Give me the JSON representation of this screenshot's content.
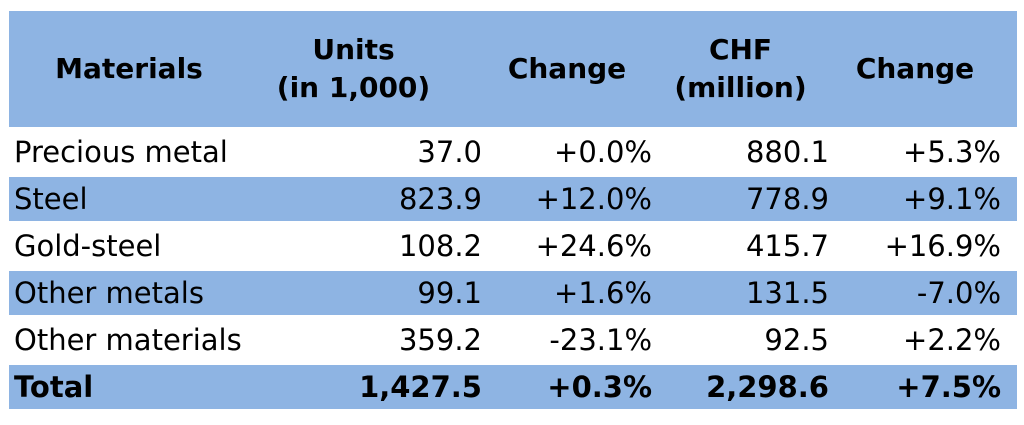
{
  "chart_data": {
    "type": "table",
    "columns": [
      {
        "key": "material",
        "label": [
          "Materials"
        ]
      },
      {
        "key": "units",
        "label": [
          "Units",
          "(in 1,000)"
        ]
      },
      {
        "key": "units_change",
        "label": [
          "Change"
        ]
      },
      {
        "key": "chf",
        "label": [
          "CHF",
          "(million)"
        ]
      },
      {
        "key": "chf_change",
        "label": [
          "Change"
        ]
      }
    ],
    "rows": [
      {
        "material": "Precious metal",
        "units": "37.0",
        "units_change": "+0.0%",
        "chf": "880.1",
        "chf_change": "+5.3%"
      },
      {
        "material": "Steel",
        "units": "823.9",
        "units_change": "+12.0%",
        "chf": "778.9",
        "chf_change": "+9.1%"
      },
      {
        "material": "Gold-steel",
        "units": "108.2",
        "units_change": "+24.6%",
        "chf": "415.7",
        "chf_change": "+16.9%"
      },
      {
        "material": "Other metals",
        "units": "99.1",
        "units_change": "+1.6%",
        "chf": "131.5",
        "chf_change": "-7.0%"
      },
      {
        "material": "Other materials",
        "units": "359.2",
        "units_change": "-23.1%",
        "chf": "92.5",
        "chf_change": "+2.2%"
      }
    ],
    "total": {
      "material": "Total",
      "units": "1,427.5",
      "units_change": "+0.3%",
      "chf": "2,298.6",
      "chf_change": "+7.5%"
    },
    "header_color": "#8eb4e3",
    "alternate_row_color": "#8eb4e3"
  }
}
